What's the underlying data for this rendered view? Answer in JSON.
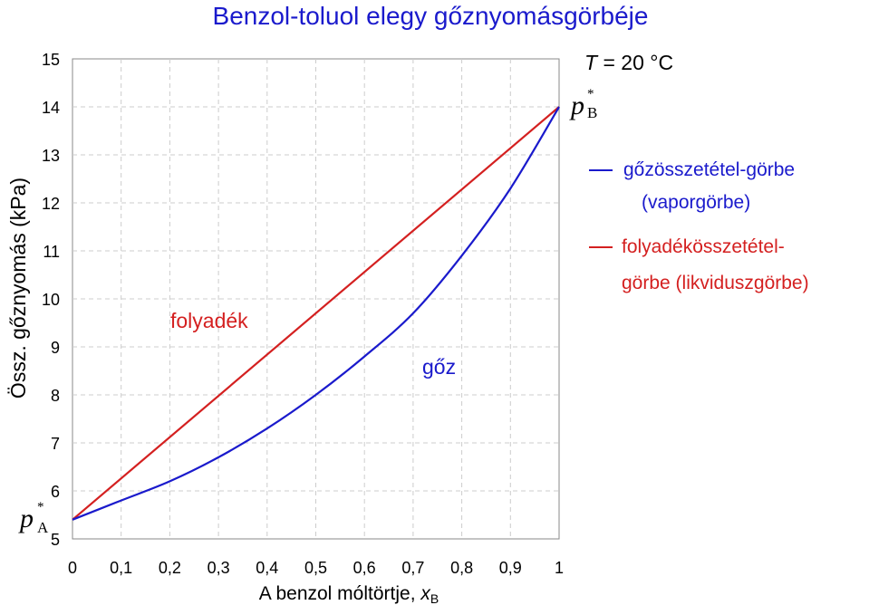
{
  "chart_data": {
    "type": "line",
    "title": "Benzol-toluol elegy gőznyomásgörbéje",
    "xlabel_main": "A benzol móltörtje, ",
    "xlabel_var": "x",
    "xlabel_sub": "B",
    "ylabel": "Össz. gőznyomás (kPa)",
    "x_ticks": [
      "0",
      "0,1",
      "0,2",
      "0,3",
      "0,4",
      "0,5",
      "0,6",
      "0,7",
      "0,8",
      "0,9",
      "1"
    ],
    "y_ticks": [
      "5",
      "6",
      "7",
      "8",
      "9",
      "10",
      "11",
      "12",
      "13",
      "14",
      "15"
    ],
    "xlim": [
      0,
      1
    ],
    "ylim": [
      5,
      15
    ],
    "grid": "dashed",
    "series": [
      {
        "name": "liquid",
        "color": "#d42020",
        "x": [
          0,
          1
        ],
        "y": [
          5.4,
          14.0
        ]
      },
      {
        "name": "vapor",
        "color": "#1a1acc",
        "x": [
          0,
          0.1,
          0.2,
          0.3,
          0.4,
          0.5,
          0.6,
          0.7,
          0.8,
          0.9,
          1
        ],
        "y": [
          5.4,
          5.8,
          6.2,
          6.7,
          7.3,
          8.0,
          8.8,
          9.7,
          10.9,
          12.3,
          14.0
        ]
      }
    ],
    "annotations": {
      "temperature_var": "T",
      "temperature_rest": " = 20 °C",
      "liquid_region": "folyadék",
      "vapor_region": "gőz",
      "pA_var": "p",
      "pA_sub": "A",
      "pB_var": "p",
      "pB_sub": "B",
      "star": "*"
    },
    "legend": {
      "position": "right",
      "items": [
        {
          "line1": "gőzösszetétel-görbe",
          "line2": "(vaporgörbe)",
          "color": "#1a1acc"
        },
        {
          "line1": "folyadékösszetétel-",
          "line2": "görbe  (likviduszgörbe)",
          "color": "#d42020"
        }
      ]
    }
  }
}
